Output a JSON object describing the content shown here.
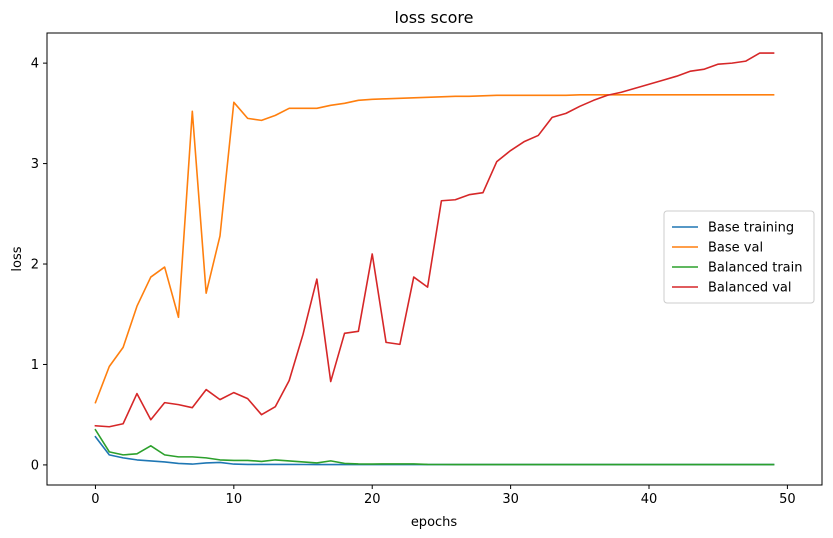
{
  "chart_data": {
    "type": "line",
    "title": "loss score",
    "xlabel": "epochs",
    "ylabel": "loss",
    "xlim": [
      -3.5,
      52.5
    ],
    "ylim": [
      -0.2,
      4.3
    ],
    "xticks": [
      0,
      10,
      20,
      30,
      40,
      50
    ],
    "yticks": [
      0,
      1,
      2,
      3,
      4
    ],
    "grid": false,
    "legend_position": "center-right",
    "x": [
      0,
      1,
      2,
      3,
      4,
      5,
      6,
      7,
      8,
      9,
      10,
      11,
      12,
      13,
      14,
      15,
      16,
      17,
      18,
      19,
      20,
      21,
      22,
      23,
      24,
      25,
      26,
      27,
      28,
      29,
      30,
      31,
      32,
      33,
      34,
      35,
      36,
      37,
      38,
      39,
      40,
      41,
      42,
      43,
      44,
      45,
      46,
      47,
      48,
      49
    ],
    "series": [
      {
        "name": "Base training",
        "color": "#1f77b4",
        "values": [
          0.28,
          0.1,
          0.07,
          0.05,
          0.04,
          0.03,
          0.015,
          0.008,
          0.02,
          0.025,
          0.008,
          0.005,
          0.005,
          0.005,
          0.005,
          0.004,
          0.003,
          0.003,
          0.003,
          0.003,
          0.003,
          0.003,
          0.003,
          0.003,
          0.003,
          0.003,
          0.003,
          0.003,
          0.003,
          0.003,
          0.003,
          0.003,
          0.003,
          0.003,
          0.003,
          0.003,
          0.003,
          0.003,
          0.003,
          0.003,
          0.003,
          0.003,
          0.003,
          0.003,
          0.003,
          0.003,
          0.003,
          0.003,
          0.003,
          0.003
        ]
      },
      {
        "name": "Base val",
        "color": "#ff7f0e",
        "values": [
          0.62,
          0.98,
          1.17,
          1.58,
          1.87,
          1.97,
          1.47,
          3.52,
          1.71,
          2.28,
          3.61,
          3.45,
          3.43,
          3.48,
          3.55,
          3.55,
          3.55,
          3.58,
          3.6,
          3.63,
          3.64,
          3.645,
          3.65,
          3.655,
          3.66,
          3.665,
          3.67,
          3.67,
          3.675,
          3.68,
          3.68,
          3.68,
          3.68,
          3.68,
          3.68,
          3.685,
          3.685,
          3.685,
          3.685,
          3.685,
          3.685,
          3.685,
          3.685,
          3.685,
          3.685,
          3.685,
          3.685,
          3.685,
          3.685,
          3.685
        ]
      },
      {
        "name": "Balanced train",
        "color": "#2ca02c",
        "values": [
          0.35,
          0.13,
          0.1,
          0.11,
          0.19,
          0.1,
          0.08,
          0.08,
          0.07,
          0.05,
          0.045,
          0.045,
          0.035,
          0.05,
          0.04,
          0.03,
          0.02,
          0.04,
          0.015,
          0.01,
          0.008,
          0.01,
          0.01,
          0.01,
          0.005,
          0.004,
          0.003,
          0.003,
          0.003,
          0.003,
          0.003,
          0.003,
          0.003,
          0.003,
          0.003,
          0.003,
          0.003,
          0.003,
          0.003,
          0.003,
          0.003,
          0.003,
          0.003,
          0.003,
          0.003,
          0.003,
          0.003,
          0.003,
          0.003,
          0.003
        ]
      },
      {
        "name": "Balanced val",
        "color": "#d62728",
        "values": [
          0.39,
          0.38,
          0.41,
          0.71,
          0.45,
          0.62,
          0.6,
          0.57,
          0.75,
          0.65,
          0.72,
          0.66,
          0.5,
          0.58,
          0.84,
          1.3,
          1.85,
          0.83,
          1.31,
          1.33,
          2.1,
          1.22,
          1.2,
          1.87,
          1.77,
          2.63,
          2.64,
          2.69,
          2.71,
          3.02,
          3.13,
          3.22,
          3.28,
          3.46,
          3.5,
          3.57,
          3.63,
          3.68,
          3.71,
          3.75,
          3.79,
          3.83,
          3.87,
          3.92,
          3.94,
          3.99,
          4.0,
          4.02,
          4.1,
          4.1
        ]
      }
    ]
  }
}
